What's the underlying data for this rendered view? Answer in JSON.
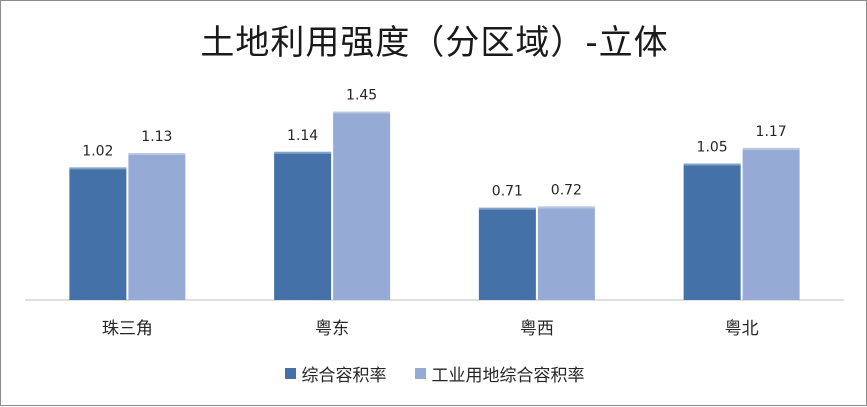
{
  "chart_data": {
    "type": "bar",
    "title": "土地利用强度（分区域）-立体",
    "categories": [
      "珠三角",
      "粤东",
      "粤西",
      "粤北"
    ],
    "series": [
      {
        "name": "综合容积率",
        "values": [
          1.02,
          1.14,
          0.71,
          1.05
        ],
        "color": "#4472a8"
      },
      {
        "name": "工业用地综合容积率",
        "values": [
          1.13,
          1.45,
          0.72,
          1.17
        ],
        "color": "#95aad4"
      }
    ],
    "value_labels": {
      "series_0": [
        "1.02",
        "1.14",
        "0.71",
        "1.05"
      ],
      "series_1": [
        "1.13",
        "1.45",
        "0.72",
        "1.17"
      ]
    },
    "xlabel": "",
    "ylabel": "",
    "ylim": [
      0,
      1.6
    ],
    "grid": false,
    "legend_position": "bottom"
  }
}
